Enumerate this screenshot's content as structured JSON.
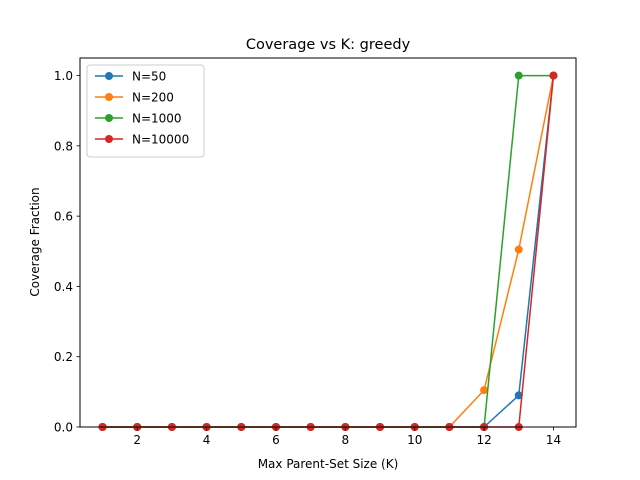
{
  "chart_data": {
    "type": "line",
    "title": "Coverage vs K: greedy",
    "xlabel": "Max Parent-Set Size (K)",
    "ylabel": "Coverage Fraction",
    "xlim": [
      0.35,
      14.65
    ],
    "ylim": [
      0,
      1.05
    ],
    "xticks": [
      2,
      4,
      6,
      8,
      10,
      12,
      14
    ],
    "yticks": [
      0.0,
      0.2,
      0.4,
      0.6,
      0.8,
      1.0
    ],
    "xtick_labels": [
      "2",
      "4",
      "6",
      "8",
      "10",
      "12",
      "14"
    ],
    "ytick_labels": [
      "0.0",
      "0.2",
      "0.4",
      "0.6",
      "0.8",
      "1.0"
    ],
    "x": [
      1,
      2,
      3,
      4,
      5,
      6,
      7,
      8,
      9,
      10,
      11,
      12,
      13,
      14
    ],
    "grid": false,
    "legend_position": "top-left",
    "series": [
      {
        "name": "N=50",
        "color": "#1f77b4",
        "values": [
          0,
          0,
          0,
          0,
          0,
          0,
          0,
          0,
          0,
          0,
          0,
          0,
          0.09,
          1.0
        ]
      },
      {
        "name": "N=200",
        "color": "#ff7f0e",
        "values": [
          0,
          0,
          0,
          0,
          0,
          0,
          0,
          0,
          0,
          0,
          0,
          0.105,
          0.505,
          1.0
        ]
      },
      {
        "name": "N=1000",
        "color": "#2ca02c",
        "values": [
          0,
          0,
          0,
          0,
          0,
          0,
          0,
          0,
          0,
          0,
          0,
          0,
          1.0,
          1.0
        ]
      },
      {
        "name": "N=10000",
        "color": "#d62728",
        "values": [
          0,
          0,
          0,
          0,
          0,
          0,
          0,
          0,
          0,
          0,
          0,
          0,
          0,
          1.0
        ]
      }
    ]
  }
}
